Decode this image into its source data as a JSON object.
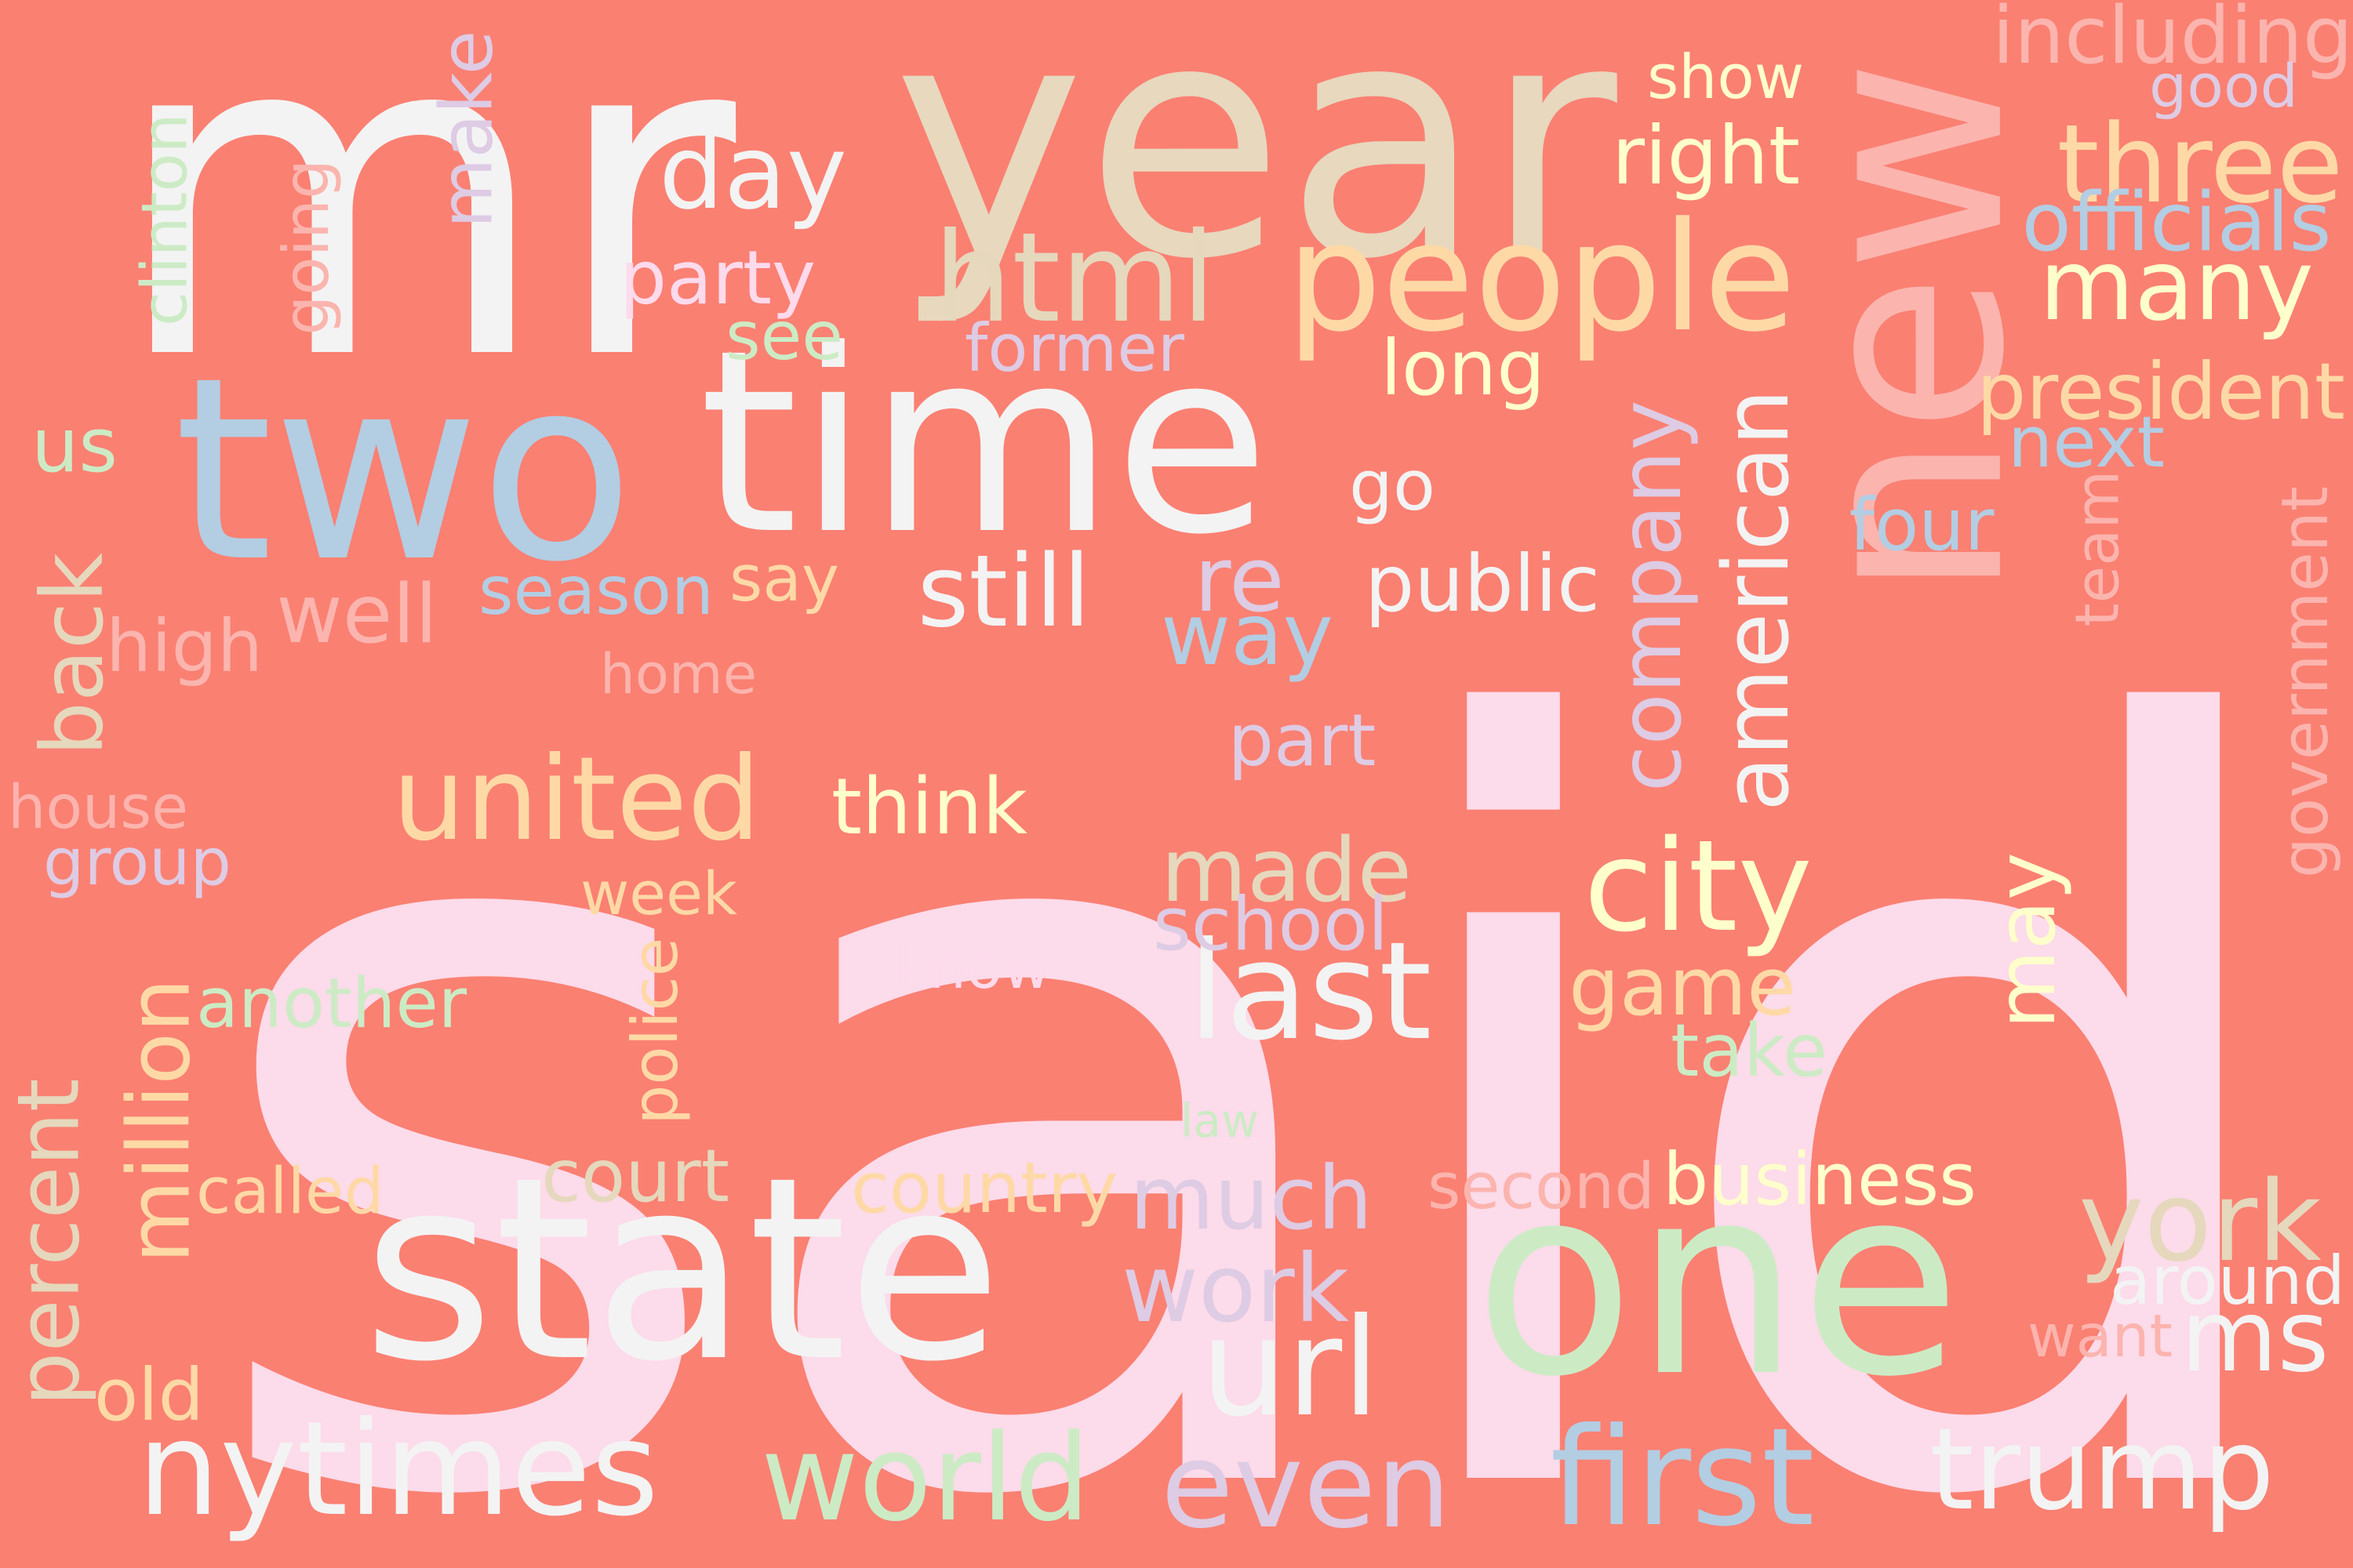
{
  "background": "#fa8072",
  "words": [
    {
      "text": "said",
      "color": "#fcdbea"
    },
    {
      "text": "mr",
      "color": "#f3f3f3"
    },
    {
      "text": "year",
      "color": "#e7d8be"
    },
    {
      "text": "new",
      "color": "#fbb4ae"
    },
    {
      "text": "time",
      "color": "#f3f3f3"
    },
    {
      "text": "two",
      "color": "#b3cde3"
    },
    {
      "text": "state",
      "color": "#f3f3f3"
    },
    {
      "text": "one",
      "color": "#ccebc5"
    },
    {
      "text": "people",
      "color": "#fed9a6"
    },
    {
      "text": "html",
      "color": "#e5d8bd"
    },
    {
      "text": "first",
      "color": "#b3cde3"
    },
    {
      "text": "trump",
      "color": "#f3f3f3"
    },
    {
      "text": "nytimes",
      "color": "#f3f3f3"
    },
    {
      "text": "world",
      "color": "#ccebc5"
    },
    {
      "text": "even",
      "color": "#decbe4"
    },
    {
      "text": "url",
      "color": "#f3f3f3"
    },
    {
      "text": "last",
      "color": "#f3f3f3"
    },
    {
      "text": "many",
      "color": "#ffffcc"
    },
    {
      "text": "three",
      "color": "#fed9a6"
    },
    {
      "text": "york",
      "color": "#e5d8bd"
    },
    {
      "text": "city",
      "color": "#ffffcc"
    },
    {
      "text": "united",
      "color": "#fed9a6"
    },
    {
      "text": "company",
      "color": "#decbe4"
    },
    {
      "text": "american",
      "color": "#f3f3f3"
    },
    {
      "text": "made",
      "color": "#e5d8bd"
    },
    {
      "text": "much",
      "color": "#decbe4"
    },
    {
      "text": "game",
      "color": "#fed9a6"
    },
    {
      "text": "percent",
      "color": "#e5d8bd"
    },
    {
      "text": "million",
      "color": "#fed9a6"
    },
    {
      "text": "back",
      "color": "#e5d8bd"
    },
    {
      "text": "day",
      "color": "#f3f3f3"
    },
    {
      "text": "way",
      "color": "#b3cde3"
    },
    {
      "text": "still",
      "color": "#f3f3f3"
    },
    {
      "text": "re",
      "color": "#decbe4"
    },
    {
      "text": "work",
      "color": "#decbe4"
    },
    {
      "text": "ms",
      "color": "#f3f3f3"
    },
    {
      "text": "may",
      "color": "#ffffcc"
    },
    {
      "text": "make",
      "color": "#decbe4"
    },
    {
      "text": "president",
      "color": "#fed9a6"
    },
    {
      "text": "including",
      "color": "#fbb4ae"
    },
    {
      "text": "officials",
      "color": "#b3cde3"
    },
    {
      "text": "government",
      "color": "#fbb4ae"
    },
    {
      "text": "season",
      "color": "#b3cde3"
    },
    {
      "text": "public",
      "color": "#f3f3f3"
    },
    {
      "text": "think",
      "color": "#ffffcc"
    },
    {
      "text": "another",
      "color": "#ccebc5"
    },
    {
      "text": "business",
      "color": "#ffffcc"
    },
    {
      "text": "country",
      "color": "#fed9a6"
    },
    {
      "text": "school",
      "color": "#decbe4"
    },
    {
      "text": "around",
      "color": "#f3f3f3"
    },
    {
      "text": "show",
      "color": "#ffffcc"
    },
    {
      "text": "right",
      "color": "#ffffcc"
    },
    {
      "text": "good",
      "color": "#decbe4"
    },
    {
      "text": "party",
      "color": "#fddaec"
    },
    {
      "text": "former",
      "color": "#decbe4"
    },
    {
      "text": "long",
      "color": "#ffffcc"
    },
    {
      "text": "clinton",
      "color": "#ccebc5"
    },
    {
      "text": "going",
      "color": "#fbb4ae"
    },
    {
      "text": "see",
      "color": "#ccebc5"
    },
    {
      "text": "go",
      "color": "#f3f3f3"
    },
    {
      "text": "next",
      "color": "#b3cde3"
    },
    {
      "text": "four",
      "color": "#b3cde3"
    },
    {
      "text": "team",
      "color": "#fbb4ae"
    },
    {
      "text": "us",
      "color": "#ccebc5"
    },
    {
      "text": "say",
      "color": "#fed9a6"
    },
    {
      "text": "well",
      "color": "#fbb4ae"
    },
    {
      "text": "high",
      "color": "#fbb4ae"
    },
    {
      "text": "home",
      "color": "#fbb4ae"
    },
    {
      "text": "part",
      "color": "#decbe4"
    },
    {
      "text": "house",
      "color": "#fbb4ae"
    },
    {
      "text": "group",
      "color": "#decbe4"
    },
    {
      "text": "week",
      "color": "#fed9a6"
    },
    {
      "text": "know",
      "color": "#fddaec"
    },
    {
      "text": "police",
      "color": "#fed9a6"
    },
    {
      "text": "take",
      "color": "#ccebc5"
    },
    {
      "text": "law",
      "color": "#ccebc5"
    },
    {
      "text": "called",
      "color": "#fed9a6"
    },
    {
      "text": "court",
      "color": "#e5d8bd"
    },
    {
      "text": "second",
      "color": "#fbb4ae"
    },
    {
      "text": "want",
      "color": "#fbb4ae"
    },
    {
      "text": "old",
      "color": "#fed9a6"
    }
  ]
}
